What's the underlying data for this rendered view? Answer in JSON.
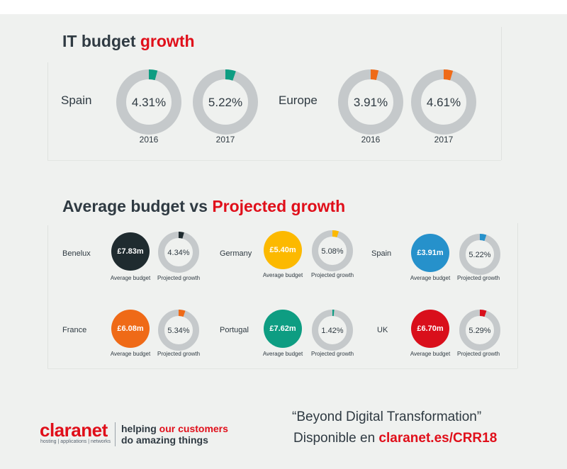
{
  "colors": {
    "red": "#e00f1a",
    "ring_grey": "#c5c9cb",
    "teal": "#0e9d82",
    "orange": "#ef6a17",
    "dark": "#1f2b2f",
    "yellow": "#fcb900",
    "blue": "#2691cb",
    "green": "#0e9d82",
    "crimson": "#d90f1b"
  },
  "it_budget": {
    "title_main": "IT budget",
    "title_accent": "growth",
    "regions": [
      {
        "name": "Spain",
        "color": "teal",
        "items": [
          {
            "year": "2016",
            "label": "4.31%",
            "value": 4.31
          },
          {
            "year": "2017",
            "label": "5.22%",
            "value": 5.22
          }
        ]
      },
      {
        "name": "Europe",
        "color": "orange",
        "items": [
          {
            "year": "2016",
            "label": "3.91%",
            "value": 3.91
          },
          {
            "year": "2017",
            "label": "4.61%",
            "value": 4.61
          }
        ]
      }
    ]
  },
  "average_budget": {
    "title_main": "Average budget vs",
    "title_accent": "Projected growth",
    "caption_budget": "Average budget",
    "caption_growth": "Projected growth",
    "countries": [
      {
        "name": "Benelux",
        "budget": "£7.83m",
        "growth_label": "4.34%",
        "growth": 4.34,
        "color": "dark"
      },
      {
        "name": "Germany",
        "budget": "£5.40m",
        "growth_label": "5.08%",
        "growth": 5.08,
        "color": "yellow"
      },
      {
        "name": "Spain",
        "budget": "£3.91m",
        "growth_label": "5.22%",
        "growth": 5.22,
        "color": "blue"
      },
      {
        "name": "France",
        "budget": "£6.08m",
        "growth_label": "5.34%",
        "growth": 5.34,
        "color": "orange"
      },
      {
        "name": "Portugal",
        "budget": "£7.62m",
        "growth_label": "1.42%",
        "growth": 1.42,
        "color": "green"
      },
      {
        "name": "UK",
        "budget": "£6.70m",
        "growth_label": "5.29%",
        "growth": 5.29,
        "color": "crimson"
      }
    ]
  },
  "chart_data": [
    {
      "type": "pie",
      "title": "IT budget growth",
      "series": [
        {
          "name": "Spain",
          "categories": [
            "2016",
            "2017"
          ],
          "values": [
            4.31,
            5.22
          ],
          "unit": "%"
        },
        {
          "name": "Europe",
          "categories": [
            "2016",
            "2017"
          ],
          "values": [
            3.91,
            4.61
          ],
          "unit": "%"
        }
      ]
    },
    {
      "type": "pie",
      "title": "Average budget vs Projected growth",
      "categories": [
        "Benelux",
        "Germany",
        "Spain",
        "France",
        "Portugal",
        "UK"
      ],
      "series": [
        {
          "name": "Average budget",
          "values": [
            7.83,
            5.4,
            3.91,
            6.08,
            7.62,
            6.7
          ],
          "unit": "£m"
        },
        {
          "name": "Projected growth",
          "values": [
            4.34,
            5.08,
            5.22,
            5.34,
            1.42,
            5.29
          ],
          "unit": "%"
        }
      ]
    }
  ],
  "footer": {
    "brand": "claranet",
    "brand_sub": "hosting | applications | networks",
    "tag_line1_a": "helping",
    "tag_line1_b": "our customers",
    "tag_line2": "do amazing things",
    "quote": "“Beyond Digital Transformation”",
    "cta_prefix": "Disponible en",
    "cta_link": "claranet.es/CRR18"
  }
}
